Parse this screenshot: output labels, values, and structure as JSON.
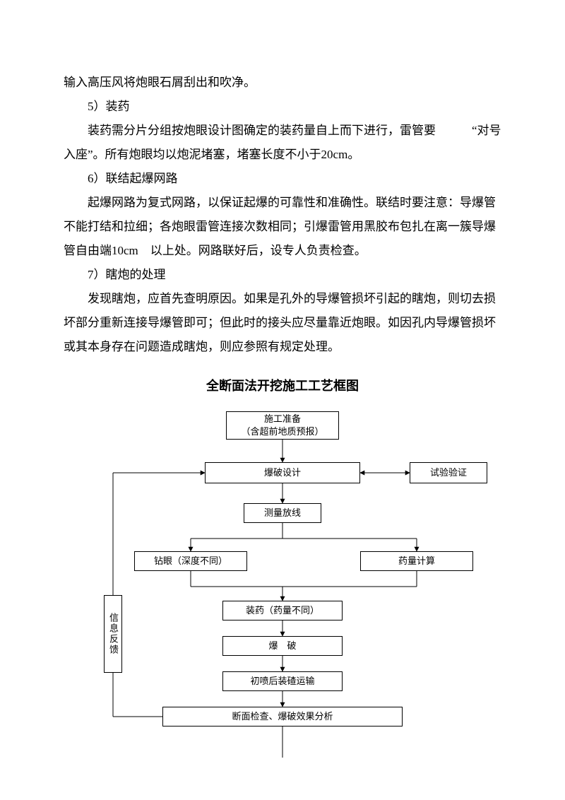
{
  "text": {
    "p1": "输入高压风将炮眼石屑刮出和吹净。",
    "p2": "5）装药",
    "p3": "装药需分片分组按炮眼设计图确定的装药量自上而下进行，雷管要　　　“对号入座”。所有炮眼均以炮泥堵塞，堵塞长度不小于20cm。",
    "p4": "6）联结起爆网路",
    "p5": "起爆网路为复式网路，以保证起爆的可靠性和准确性。联结时要注意：导爆管不能打结和拉细；各炮眼雷管连接次数相同；引爆雷管用黑胶布包扎在离一簇导爆管自由端10cm　以上处。网路联好后，设专人负责检查。",
    "p6": "7）瞎炮的处理",
    "p7": "发现瞎炮，应首先查明原因。如果是孔外的导爆管损坏引起的瞎炮，则切去损坏部分重新连接导爆管即可；但此时的接头应尽量靠近炮眼。如因孔内导爆管损坏或其本身存在问题造成瞎炮，则应参照有规定处理。"
  },
  "chart": {
    "title": "全断面法开挖施工工艺框图",
    "nodes": {
      "n1": "施工准备\n（含超前地质预报）",
      "n2": "爆破设计",
      "n2r": "试验验证",
      "n3": "测量放线",
      "n4l": "钻眼（深度不同）",
      "n4r": "药量计算",
      "n5": "装药（药量不同）",
      "n6": "爆　破",
      "n7": "初喷后装碴运输",
      "n8": "断面检查、爆破效果分析",
      "feedback": "信息反馈"
    },
    "colors": {
      "line": "#000000",
      "bg": "#ffffff",
      "text": "#000000"
    }
  }
}
